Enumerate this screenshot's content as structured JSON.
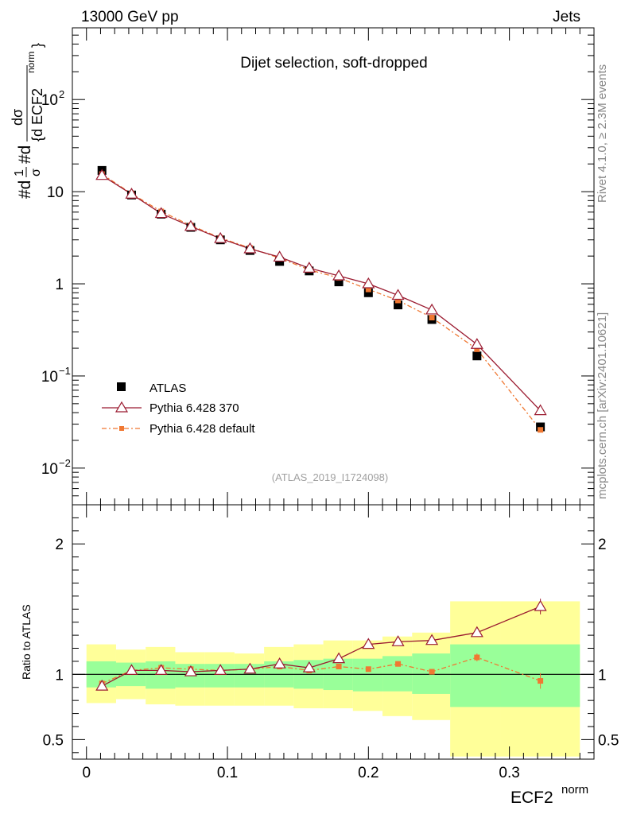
{
  "header": {
    "left": "13000 GeV pp",
    "right": "Jets"
  },
  "side_labels": {
    "rivet": "Rivet 4.1.0, ≥ 2.3M events",
    "mcplots": "mcplots.cern.ch [arXiv:2401.10621]"
  },
  "colors": {
    "atlas": "#000000",
    "pythia370": "#9b1b30",
    "pythia_default": "#f07832",
    "band_green": "#99ff99",
    "band_yellow": "#ffff99"
  },
  "chart_data": [
    {
      "type": "scatter",
      "panel": "main",
      "title": "Dijet selection, soft-dropped",
      "analysis": "(ATLAS_2019_I1724098)",
      "xlabel": "ECF2",
      "xlabel_sup": "norm",
      "ylabel": "1/σ dσ/d ECF2^norm",
      "ylabel_parts": {
        "p1": "#d",
        "p2": "1",
        "p3": "σ",
        "p4": "#d",
        "p5": "dσ",
        "p6": "{d ECF2",
        "p7": "norm",
        "p8": "}"
      },
      "yscale": "log",
      "ylim": [
        0.004,
        600
      ],
      "xlim": [
        -0.01,
        0.36
      ],
      "ytick_labels": [
        {
          "value": 0.01,
          "base": "10",
          "exp": "−2"
        },
        {
          "value": 0.1,
          "base": "10",
          "exp": "−1"
        },
        {
          "value": 1,
          "base": "1",
          "exp": ""
        },
        {
          "value": 10,
          "base": "10",
          "exp": ""
        },
        {
          "value": 100,
          "base": "10",
          "exp": "2"
        }
      ],
      "x": [
        0.011,
        0.032,
        0.053,
        0.074,
        0.095,
        0.116,
        0.137,
        0.158,
        0.179,
        0.2,
        0.221,
        0.245,
        0.277,
        0.322
      ],
      "series": [
        {
          "name": "ATLAS",
          "marker": "square",
          "values": [
            17.0,
            9.2,
            5.7,
            4.1,
            3.0,
            2.3,
            1.75,
            1.38,
            1.05,
            0.8,
            0.59,
            0.41,
            0.165,
            0.028
          ]
        },
        {
          "name": "Pythia 6.428 370",
          "marker": "triangle-open",
          "values": [
            15.0,
            9.4,
            5.8,
            4.2,
            3.1,
            2.4,
            1.95,
            1.48,
            1.22,
            1.0,
            0.75,
            0.52,
            0.22,
            0.042
          ]
        },
        {
          "name": "Pythia 6.428 default",
          "marker": "small-square",
          "values": [
            15.5,
            9.5,
            6.1,
            4.3,
            3.15,
            2.45,
            1.9,
            1.42,
            1.16,
            0.87,
            0.66,
            0.43,
            0.195,
            0.026
          ]
        }
      ],
      "legend_position": "bottom-left"
    },
    {
      "type": "line",
      "panel": "ratio",
      "ylabel": "Ratio to ATLAS",
      "ylim": [
        0.35,
        2.3
      ],
      "xlim": [
        -0.01,
        0.36
      ],
      "xticks": [
        0,
        0.1,
        0.2,
        0.3
      ],
      "xtick_labels": [
        "0",
        "0.1",
        "0.2",
        "0.3"
      ],
      "yticks": [
        0.5,
        1,
        2
      ],
      "ytick_labels": [
        "0.5",
        "1",
        "2"
      ],
      "bins": [
        0,
        0.021,
        0.042,
        0.063,
        0.084,
        0.105,
        0.126,
        0.147,
        0.168,
        0.189,
        0.21,
        0.231,
        0.258,
        0.294,
        0.35
      ],
      "band_green": {
        "lo": [
          0.9,
          0.91,
          0.89,
          0.9,
          0.9,
          0.9,
          0.9,
          0.89,
          0.88,
          0.87,
          0.87,
          0.85,
          0.75,
          0.75
        ],
        "hi": [
          1.1,
          1.09,
          1.1,
          1.08,
          1.08,
          1.08,
          1.1,
          1.11,
          1.12,
          1.12,
          1.14,
          1.16,
          1.23,
          1.23
        ]
      },
      "band_yellow": {
        "lo": [
          0.78,
          0.81,
          0.77,
          0.76,
          0.76,
          0.76,
          0.76,
          0.74,
          0.74,
          0.72,
          0.68,
          0.65,
          0.37,
          0.37
        ],
        "hi": [
          1.23,
          1.19,
          1.21,
          1.17,
          1.17,
          1.16,
          1.21,
          1.23,
          1.26,
          1.26,
          1.29,
          1.32,
          1.56,
          1.56
        ]
      },
      "x": [
        0.011,
        0.032,
        0.053,
        0.074,
        0.095,
        0.116,
        0.137,
        0.158,
        0.179,
        0.2,
        0.221,
        0.245,
        0.277,
        0.322
      ],
      "series": [
        {
          "name": "Pythia 6.428 370",
          "values": [
            0.91,
            1.03,
            1.03,
            1.02,
            1.03,
            1.04,
            1.08,
            1.05,
            1.12,
            1.23,
            1.25,
            1.26,
            1.32,
            1.52
          ],
          "errors": [
            0,
            0,
            0,
            0,
            0,
            0,
            0,
            0,
            0,
            0,
            0,
            0,
            0.03,
            0.06
          ]
        },
        {
          "name": "Pythia 6.428 default",
          "values": [
            0.93,
            1.03,
            1.05,
            1.04,
            1.03,
            1.04,
            1.06,
            1.03,
            1.06,
            1.04,
            1.08,
            1.02,
            1.13,
            0.95
          ],
          "errors": [
            0,
            0,
            0,
            0,
            0,
            0,
            0,
            0,
            0,
            0.01,
            0.02,
            0.02,
            0.03,
            0.06
          ]
        }
      ]
    }
  ]
}
